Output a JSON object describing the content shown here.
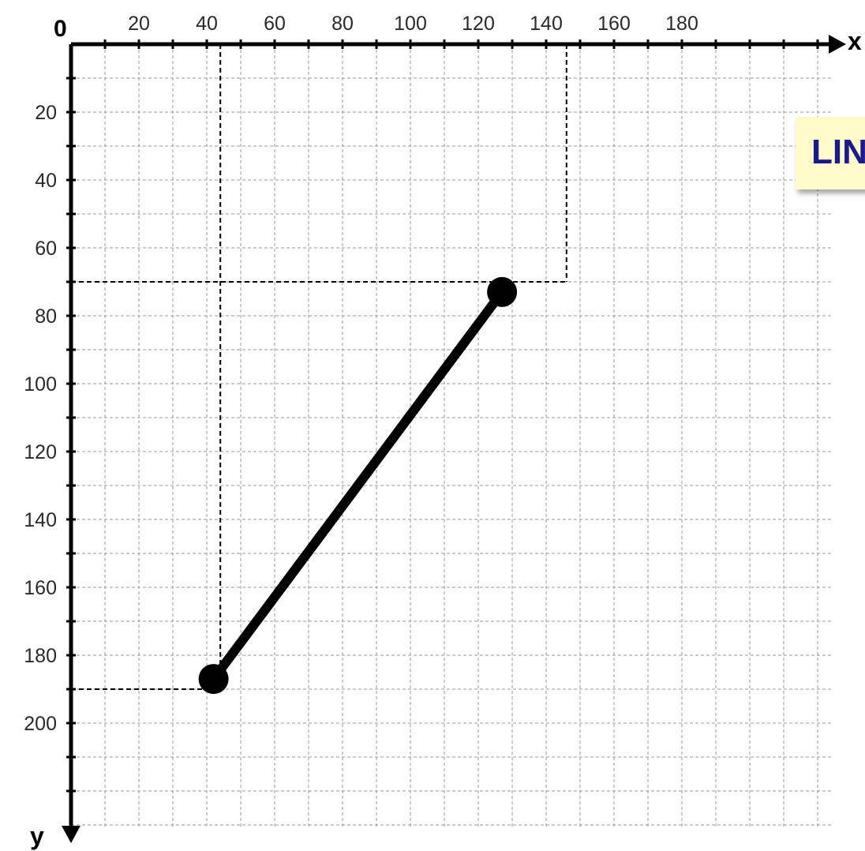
{
  "diagram": {
    "origin_label": "0",
    "x_axis_name": "x",
    "y_axis_name": "y",
    "x_ticks": [
      "20",
      "40",
      "60",
      "80",
      "100",
      "120",
      "140",
      "160",
      "180"
    ],
    "y_ticks": [
      "20",
      "40",
      "60",
      "80",
      "100",
      "120",
      "140",
      "160",
      "180",
      "200"
    ],
    "x_range": [
      0,
      225
    ],
    "y_range": [
      0,
      235
    ],
    "grid_step": 10,
    "segment": {
      "start": {
        "x": 42,
        "y": 187
      },
      "end": {
        "x": 127,
        "y": 73
      }
    },
    "guides": {
      "vertical_x": [
        44,
        146
      ],
      "horizontal_y": [
        70,
        190
      ]
    },
    "callout_text": "LIN",
    "colors": {
      "grid": "#9a9a9a",
      "axes": "#000000",
      "segment": "#000000",
      "callout_bg": "#fefbc9",
      "callout_text": "#1a1a8c"
    }
  }
}
